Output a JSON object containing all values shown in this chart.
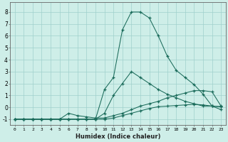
{
  "xlabel": "Humidex (Indice chaleur)",
  "xlim": [
    -0.5,
    23.5
  ],
  "ylim": [
    -1.5,
    8.8
  ],
  "yticks": [
    -1,
    0,
    1,
    2,
    3,
    4,
    5,
    6,
    7,
    8
  ],
  "xticks": [
    0,
    1,
    2,
    3,
    4,
    5,
    6,
    7,
    8,
    9,
    10,
    11,
    12,
    13,
    14,
    15,
    16,
    17,
    18,
    19,
    20,
    21,
    22,
    23
  ],
  "bg_color": "#ceeee8",
  "grid_color": "#a0d0cc",
  "line_color": "#1a6b5a",
  "lines": [
    {
      "x": [
        0,
        1,
        2,
        3,
        4,
        5,
        6,
        7,
        8,
        9,
        10,
        11,
        12,
        13,
        14,
        15,
        16,
        17,
        18,
        19,
        20,
        21,
        22,
        23
      ],
      "y": [
        -1,
        -1,
        -1,
        -1,
        -1,
        -1,
        -1,
        -1,
        -1,
        -1,
        1.5,
        2.5,
        6.5,
        8.0,
        8.0,
        7.5,
        6.0,
        4.3,
        3.1,
        2.5,
        1.9,
        1.1,
        0.1,
        -0.2
      ]
    },
    {
      "x": [
        0,
        1,
        2,
        3,
        4,
        5,
        6,
        7,
        8,
        9,
        10,
        11,
        12,
        13,
        14,
        15,
        16,
        17,
        18,
        19,
        20,
        21,
        22,
        23
      ],
      "y": [
        -1,
        -1,
        -1,
        -1,
        -1,
        -1,
        -1,
        -1,
        -1,
        -1,
        -0.5,
        1.0,
        2.0,
        3.0,
        2.5,
        2.0,
        1.5,
        1.1,
        0.8,
        0.5,
        0.3,
        0.1,
        0.1,
        0.05
      ]
    },
    {
      "x": [
        0,
        1,
        2,
        3,
        4,
        5,
        6,
        7,
        8,
        9,
        10,
        11,
        12,
        13,
        14,
        15,
        16,
        17,
        18,
        19,
        20,
        21,
        22,
        23
      ],
      "y": [
        -1,
        -1,
        -1,
        -1,
        -1,
        -1,
        -0.5,
        -0.7,
        -0.8,
        -0.9,
        -0.9,
        -0.7,
        -0.5,
        -0.2,
        0.1,
        0.3,
        0.5,
        0.8,
        1.0,
        1.2,
        1.4,
        1.4,
        1.3,
        0.1
      ]
    },
    {
      "x": [
        0,
        1,
        2,
        3,
        4,
        5,
        6,
        7,
        8,
        9,
        10,
        11,
        12,
        13,
        14,
        15,
        16,
        17,
        18,
        19,
        20,
        21,
        22,
        23
      ],
      "y": [
        -1,
        -1,
        -1,
        -1,
        -1,
        -1,
        -1,
        -1,
        -1,
        -1,
        -1,
        -0.9,
        -0.7,
        -0.5,
        -0.3,
        -0.1,
        0.05,
        0.1,
        0.15,
        0.2,
        0.25,
        0.2,
        0.1,
        0.05
      ]
    }
  ]
}
